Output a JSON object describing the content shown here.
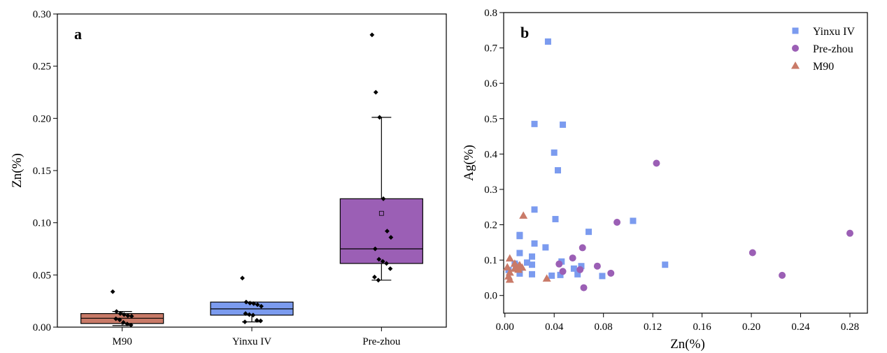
{
  "chart_data": [
    {
      "panel": "a",
      "type": "box",
      "ylabel": "Zn(%)",
      "ylim": [
        0,
        0.3
      ],
      "yticks": [
        "0.00",
        "0.05",
        "0.10",
        "0.15",
        "0.20",
        "0.25",
        "0.30"
      ],
      "categories": [
        "M90",
        "Yinxu IV",
        "Pre-zhou"
      ],
      "colors": [
        "#c97a68",
        "#7b9bef",
        "#9b5fb5"
      ],
      "boxes": [
        {
          "q1": 0.0035,
          "median": 0.0085,
          "q3": 0.013,
          "whisker_low": 0.0015,
          "whisker_high": 0.015,
          "mean": null,
          "points": [
            0.034,
            0.015,
            0.013,
            0.012,
            0.011,
            0.0105,
            0.008,
            0.007,
            0.0045,
            0.003,
            0.002
          ]
        },
        {
          "q1": 0.0115,
          "median": 0.0175,
          "q3": 0.024,
          "whisker_low": 0.005,
          "whisker_high": 0.024,
          "mean": null,
          "points": [
            0.047,
            0.024,
            0.023,
            0.0225,
            0.0215,
            0.02,
            0.013,
            0.012,
            0.0115,
            0.0065,
            0.006,
            0.005
          ]
        },
        {
          "q1": 0.061,
          "median": 0.075,
          "q3": 0.123,
          "whisker_low": 0.045,
          "whisker_high": 0.201,
          "mean": 0.109,
          "points": [
            0.28,
            0.225,
            0.201,
            0.123,
            0.092,
            0.086,
            0.075,
            0.065,
            0.063,
            0.061,
            0.056,
            0.048,
            0.045
          ]
        }
      ]
    },
    {
      "panel": "b",
      "type": "scatter",
      "xlabel": "Zn(%)",
      "ylabel": "Ag(%)",
      "xlim": [
        0,
        0.28
      ],
      "ylim": [
        0,
        0.8
      ],
      "xticks": [
        "0.00",
        "0.04",
        "0.08",
        "0.12",
        "0.16",
        "0.20",
        "0.24",
        "0.28"
      ],
      "yticks": [
        "0.0",
        "0.1",
        "0.2",
        "0.3",
        "0.4",
        "0.5",
        "0.6",
        "0.7",
        "0.8"
      ],
      "legend_position": "top-right",
      "series": [
        {
          "name": "Yinxu IV",
          "marker": "square",
          "color": "#7b9bef",
          "points": [
            [
              0.035,
              0.718
            ],
            [
              0.024,
              0.485
            ],
            [
              0.047,
              0.483
            ],
            [
              0.04,
              0.404
            ],
            [
              0.043,
              0.354
            ],
            [
              0.024,
              0.243
            ],
            [
              0.041,
              0.216
            ],
            [
              0.104,
              0.211
            ],
            [
              0.068,
              0.18
            ],
            [
              0.012,
              0.171
            ],
            [
              0.012,
              0.168
            ],
            [
              0.024,
              0.147
            ],
            [
              0.033,
              0.136
            ],
            [
              0.012,
              0.12
            ],
            [
              0.022,
              0.11
            ],
            [
              0.046,
              0.096
            ],
            [
              0.018,
              0.093
            ],
            [
              0.008,
              0.09
            ],
            [
              0.022,
              0.087
            ],
            [
              0.13,
              0.087
            ],
            [
              0.009,
              0.085
            ],
            [
              0.062,
              0.083
            ],
            [
              0.056,
              0.076
            ],
            [
              0.003,
              0.072
            ],
            [
              0.012,
              0.062
            ],
            [
              0.022,
              0.06
            ],
            [
              0.059,
              0.06
            ],
            [
              0.045,
              0.058
            ],
            [
              0.038,
              0.056
            ],
            [
              0.079,
              0.055
            ]
          ]
        },
        {
          "name": "Pre-zhou",
          "marker": "circle",
          "color": "#9b5fb5",
          "points": [
            [
              0.123,
              0.374
            ],
            [
              0.28,
              0.176
            ],
            [
              0.091,
              0.207
            ],
            [
              0.063,
              0.135
            ],
            [
              0.201,
              0.121
            ],
            [
              0.055,
              0.106
            ],
            [
              0.044,
              0.089
            ],
            [
              0.075,
              0.083
            ],
            [
              0.061,
              0.073
            ],
            [
              0.047,
              0.068
            ],
            [
              0.086,
              0.063
            ],
            [
              0.225,
              0.057
            ],
            [
              0.064,
              0.022
            ]
          ]
        },
        {
          "name": "M90",
          "marker": "triangle",
          "color": "#c97a68",
          "points": [
            [
              0.015,
              0.226
            ],
            [
              0.004,
              0.105
            ],
            [
              0.008,
              0.09
            ],
            [
              0.012,
              0.086
            ],
            [
              0.002,
              0.08
            ],
            [
              0.014,
              0.079
            ],
            [
              0.008,
              0.076
            ],
            [
              0.011,
              0.073
            ],
            [
              0.004,
              0.065
            ],
            [
              0.003,
              0.054
            ],
            [
              0.034,
              0.048
            ],
            [
              0.004,
              0.045
            ]
          ]
        }
      ]
    }
  ],
  "labels": {
    "panel_a": "a",
    "panel_b": "b"
  }
}
